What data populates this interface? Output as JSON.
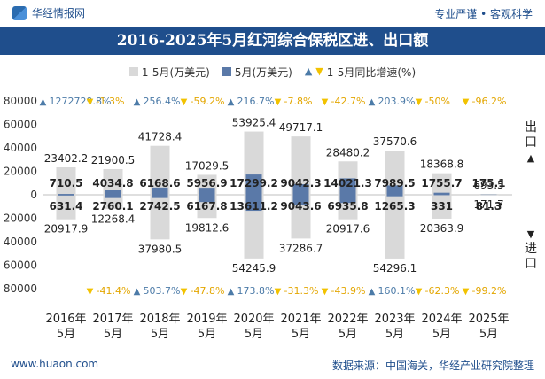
{
  "header": {
    "site_name": "华经情报网",
    "slogan": "专业严谨 • 客观科学"
  },
  "footer": {
    "website": "www.huaon.com",
    "source": "数据来源：中国海关，华经产业研究院整理"
  },
  "colors": {
    "title_bg": "#1f4e8c",
    "cumulative_bar": "#d9d9d9",
    "month_bar": "#5a79a8",
    "growth_up": "#4c7ba8",
    "growth_down": "#f2c200",
    "growth_text": "#e3a600"
  },
  "chart_data": {
    "type": "bar",
    "title": "2016-2025年5月红河综合保税区进、出口额",
    "legend": [
      {
        "name": "1-5月(万美元)"
      },
      {
        "name": "5月(万美元)"
      },
      {
        "name": "1-5月同比增速(%)"
      }
    ],
    "side_labels": {
      "top": "出口▲",
      "bottom": "▼进口"
    },
    "categories": [
      "2016年\n5月",
      "2017年\n5月",
      "2018年\n5月",
      "2019年\n5月",
      "2020年\n5月",
      "2021年\n5月",
      "2022年\n5月",
      "2023年\n5月",
      "2024年\n5月",
      "2025年\n5月"
    ],
    "y_ticks": [
      "80000",
      "60000",
      "40000",
      "20000",
      "0",
      "20000",
      "40000",
      "60000",
      "80000"
    ],
    "ylim": [
      -80000,
      80000
    ],
    "export_cumulative": [
      23402.2,
      21900.5,
      41728.4,
      17029.5,
      53925.4,
      49717.1,
      28480.2,
      37570.6,
      18368.8,
      693.5
    ],
    "export_cumulative_labels": [
      "23402.2",
      "21900.5",
      "41728.4",
      "17029.5",
      "53925.4",
      "49717.1",
      "28480.2",
      "37570.6",
      "18368.8",
      "693.5"
    ],
    "export_month": [
      710.5,
      4034.8,
      6168.6,
      5956.9,
      17299.2,
      9042.3,
      14021.3,
      7989.5,
      1755.7,
      175.1
    ],
    "export_month_labels": [
      "710.5",
      "4034.8",
      "6168.6",
      "5956.9",
      "17299.2",
      "9042.3",
      "14021.3",
      "7989.5",
      "1755.7",
      "175.1"
    ],
    "import_cumulative": [
      20917.9,
      12268.4,
      37980.5,
      19812.6,
      54245.9,
      37286.7,
      20917.6,
      54296.1,
      20363.9,
      171.7
    ],
    "import_cumulative_labels": [
      "20917.9",
      "12268.4",
      "37980.5",
      "19812.6",
      "54245.9",
      "37286.7",
      "20917.6",
      "54296.1",
      "20363.9",
      "171.7"
    ],
    "import_month": [
      631.4,
      2760.1,
      2742.5,
      6167.8,
      13611.2,
      9043.6,
      6935.8,
      1265.3,
      331,
      81.3
    ],
    "import_month_labels": [
      "631.4",
      "2760.1",
      "2742.5",
      "6167.8",
      "13611.2",
      "9043.6",
      "6935.8",
      "1265.3",
      "331",
      "81.3"
    ],
    "export_growth": [
      1272729.8,
      -1.3,
      256.4,
      -59.2,
      216.7,
      -7.8,
      -42.7,
      203.9,
      -50,
      -96.2
    ],
    "export_growth_labels": [
      "1272729.8%",
      "-1.3%",
      "256.4%",
      "-59.2%",
      "216.7%",
      "-7.8%",
      "-42.7%",
      "203.9%",
      "-50%",
      "-96.2%"
    ],
    "import_growth": [
      null,
      -41.4,
      503.7,
      -47.8,
      173.8,
      -31.3,
      -43.9,
      160.1,
      -62.3,
      -99.2
    ],
    "import_growth_labels": [
      "",
      "-41.4%",
      "503.7%",
      "-47.8%",
      "173.8%",
      "-31.3%",
      "-43.9%",
      "160.1%",
      "-62.3%",
      "-99.2%"
    ]
  }
}
